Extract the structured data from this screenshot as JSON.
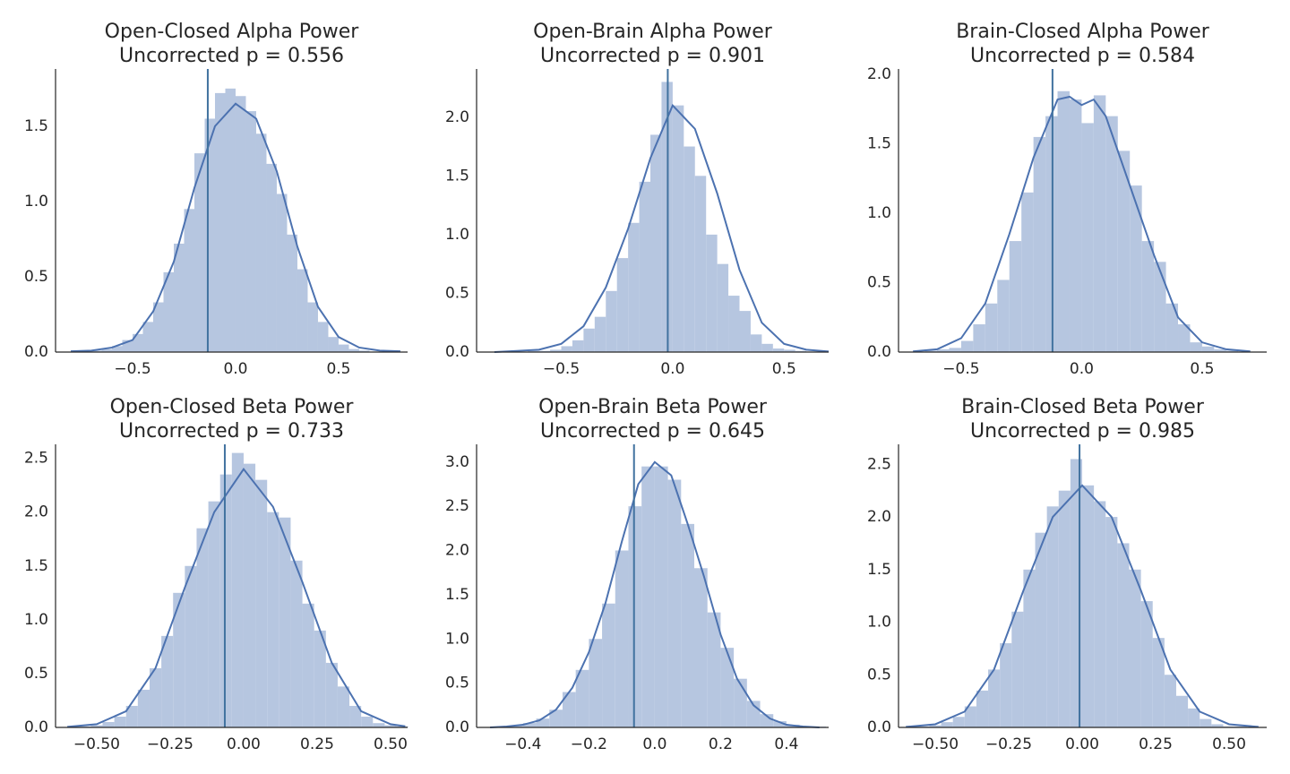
{
  "chart_data": [
    {
      "type": "histogram",
      "title": "Open-Closed Alpha Power",
      "subtitle": "Uncorrected p = 0.556",
      "bins": [
        -0.75,
        -0.7,
        -0.65,
        -0.6,
        -0.55,
        -0.5,
        -0.45,
        -0.4,
        -0.35,
        -0.3,
        -0.25,
        -0.2,
        -0.15,
        -0.1,
        -0.05,
        0,
        0.05,
        0.1,
        0.15,
        0.2,
        0.25,
        0.3,
        0.35,
        0.4,
        0.45,
        0.5,
        0.55,
        0.6,
        0.65
      ],
      "counts": [
        0.01,
        0.01,
        0.02,
        0.04,
        0.08,
        0.12,
        0.2,
        0.33,
        0.53,
        0.72,
        0.95,
        1.32,
        1.55,
        1.72,
        1.75,
        1.7,
        1.6,
        1.45,
        1.25,
        1.05,
        0.78,
        0.55,
        0.33,
        0.2,
        0.1,
        0.05,
        0.02,
        0.01
      ],
      "color": "#b6c6e0",
      "kde": {
        "x": [
          -0.8,
          -0.7,
          -0.6,
          -0.5,
          -0.4,
          -0.3,
          -0.2,
          -0.1,
          0,
          0.1,
          0.2,
          0.3,
          0.4,
          0.5,
          0.6,
          0.7,
          0.8
        ],
        "values": [
          0.005,
          0.01,
          0.03,
          0.08,
          0.27,
          0.6,
          1.09,
          1.5,
          1.65,
          1.55,
          1.2,
          0.7,
          0.3,
          0.1,
          0.03,
          0.01,
          0.005
        ],
        "color": "#4c72b0"
      },
      "vline": -0.135,
      "vline_color": "#41729f",
      "xlim": [
        -0.874,
        0.835
      ],
      "ylim": [
        0,
        1.88
      ],
      "xticks": [
        {
          "value": -0.5,
          "label": "−0.5"
        },
        {
          "value": 0,
          "label": "0.0"
        },
        0.5
      ],
      "yticks": [
        {
          "value": 0,
          "label": "0.0"
        },
        0.5,
        {
          "value": 1,
          "label": "1.0"
        },
        1.5
      ]
    },
    {
      "type": "histogram",
      "title": "Open-Brain Alpha Power",
      "subtitle": "Uncorrected p = 0.901",
      "bins": [
        -0.75,
        -0.7,
        -0.65,
        -0.6,
        -0.55,
        -0.5,
        -0.45,
        -0.4,
        -0.35,
        -0.3,
        -0.25,
        -0.2,
        -0.15,
        -0.1,
        -0.05,
        0,
        0.05,
        0.1,
        0.15,
        0.2,
        0.25,
        0.3,
        0.35,
        0.4,
        0.45,
        0.5,
        0.55,
        0.6,
        0.65
      ],
      "counts": [
        0.01,
        0,
        0.01,
        0.01,
        0.02,
        0.05,
        0.1,
        0.2,
        0.3,
        0.52,
        0.8,
        1.1,
        1.45,
        1.85,
        2.3,
        2.1,
        1.75,
        1.5,
        1.0,
        0.75,
        0.48,
        0.35,
        0.15,
        0.07,
        0.03,
        0.02,
        0.01,
        0
      ],
      "color": "#b6c6e0",
      "kde": {
        "x": [
          -0.8,
          -0.7,
          -0.6,
          -0.5,
          -0.4,
          -0.3,
          -0.2,
          -0.1,
          0,
          0.1,
          0.2,
          0.3,
          0.4,
          0.5,
          0.6,
          0.7
        ],
        "values": [
          0,
          0.01,
          0.02,
          0.07,
          0.22,
          0.55,
          1.05,
          1.65,
          2.1,
          1.9,
          1.35,
          0.7,
          0.25,
          0.07,
          0.02,
          0.005
        ],
        "color": "#4c72b0"
      },
      "vline": -0.022,
      "vline_color": "#41729f",
      "xlim": [
        -0.88,
        0.7
      ],
      "ylim": [
        0,
        2.41
      ],
      "xticks": [
        {
          "value": -0.5,
          "label": "−0.5"
        },
        {
          "value": 0,
          "label": "0.0"
        },
        0.5
      ],
      "yticks": [
        {
          "value": 0,
          "label": "0.0"
        },
        0.5,
        {
          "value": 1,
          "label": "1.0"
        },
        1.5,
        {
          "value": 2,
          "label": "2.0"
        }
      ]
    },
    {
      "type": "histogram",
      "title": "Brain-Closed Alpha Power",
      "subtitle": "Uncorrected p = 0.584",
      "bins": [
        -0.65,
        -0.6,
        -0.55,
        -0.5,
        -0.45,
        -0.4,
        -0.35,
        -0.3,
        -0.25,
        -0.2,
        -0.15,
        -0.1,
        -0.05,
        0,
        0.05,
        0.1,
        0.15,
        0.2,
        0.25,
        0.3,
        0.35,
        0.4,
        0.45,
        0.5,
        0.55,
        0.6,
        0.65
      ],
      "counts": [
        0.01,
        0.02,
        0.03,
        0.08,
        0.2,
        0.35,
        0.52,
        0.8,
        1.15,
        1.55,
        1.7,
        1.88,
        1.82,
        1.65,
        1.85,
        1.7,
        1.45,
        1.2,
        0.8,
        0.65,
        0.35,
        0.2,
        0.07,
        0.04,
        0.02,
        0.01
      ],
      "color": "#b6c6e0",
      "kde": {
        "x": [
          -0.7,
          -0.6,
          -0.5,
          -0.4,
          -0.3,
          -0.2,
          -0.1,
          -0.05,
          0,
          0.05,
          0.1,
          0.2,
          0.3,
          0.4,
          0.5,
          0.6,
          0.7
        ],
        "values": [
          0.005,
          0.02,
          0.1,
          0.35,
          0.85,
          1.4,
          1.82,
          1.84,
          1.78,
          1.82,
          1.7,
          1.2,
          0.7,
          0.25,
          0.07,
          0.02,
          0.005
        ],
        "color": "#4c72b0"
      },
      "vline": -0.121,
      "vline_color": "#41729f",
      "xlim": [
        -0.76,
        0.768
      ],
      "ylim": [
        0,
        2.04
      ],
      "xticks": [
        {
          "value": -0.5,
          "label": "−0.5"
        },
        {
          "value": 0,
          "label": "0.0"
        },
        0.5
      ],
      "yticks": [
        {
          "value": 0,
          "label": "0.0"
        },
        0.5,
        {
          "value": 1,
          "label": "1.0"
        },
        1.5,
        {
          "value": 2,
          "label": "2.0"
        }
      ]
    },
    {
      "type": "histogram",
      "title": "Open-Closed Beta Power",
      "subtitle": "Uncorrected p = 0.733",
      "bins": [
        -0.6,
        -0.56,
        -0.52,
        -0.48,
        -0.44,
        -0.4,
        -0.36,
        -0.32,
        -0.28,
        -0.24,
        -0.2,
        -0.16,
        -0.12,
        -0.08,
        -0.04,
        0,
        0.04,
        0.08,
        0.12,
        0.16,
        0.2,
        0.24,
        0.28,
        0.32,
        0.36,
        0.4,
        0.44,
        0.48,
        0.52,
        0.56
      ],
      "counts": [
        0.01,
        0.01,
        0.02,
        0.05,
        0.1,
        0.2,
        0.35,
        0.55,
        0.85,
        1.25,
        1.5,
        1.85,
        2.1,
        2.35,
        2.55,
        2.45,
        2.3,
        2.0,
        1.95,
        1.55,
        1.15,
        0.9,
        0.6,
        0.38,
        0.2,
        0.1,
        0.04,
        0.02,
        0.01
      ],
      "color": "#b6c6e0",
      "kde": {
        "x": [
          -0.6,
          -0.5,
          -0.4,
          -0.3,
          -0.2,
          -0.1,
          0,
          0.1,
          0.2,
          0.3,
          0.4,
          0.5,
          0.55
        ],
        "values": [
          0.005,
          0.03,
          0.15,
          0.55,
          1.3,
          2.0,
          2.4,
          2.05,
          1.35,
          0.6,
          0.15,
          0.03,
          0.01
        ],
        "color": "#4c72b0"
      },
      "vline": -0.064,
      "vline_color": "#41729f",
      "xlim": [
        -0.64,
        0.558
      ],
      "ylim": [
        0,
        2.63
      ],
      "xticks": [
        {
          "value": -0.5,
          "label": "−0.50"
        },
        {
          "value": -0.25,
          "label": "−0.25"
        },
        {
          "value": 0,
          "label": "0.00"
        },
        0.25,
        {
          "value": 0.5,
          "label": "0.50"
        }
      ],
      "yticks": [
        {
          "value": 0,
          "label": "0.0"
        },
        0.5,
        {
          "value": 1,
          "label": "1.0"
        },
        1.5,
        {
          "value": 2,
          "label": "2.0"
        },
        2.5
      ]
    },
    {
      "type": "histogram",
      "title": "Open-Brain Beta Power",
      "subtitle": "Uncorrected p = 0.645",
      "bins": [
        -0.48,
        -0.44,
        -0.4,
        -0.36,
        -0.32,
        -0.28,
        -0.24,
        -0.2,
        -0.16,
        -0.12,
        -0.08,
        -0.04,
        0,
        0.04,
        0.08,
        0.12,
        0.16,
        0.2,
        0.24,
        0.28,
        0.32,
        0.36,
        0.4,
        0.44,
        0.48,
        0.52
      ],
      "counts": [
        0.01,
        0.02,
        0.05,
        0.1,
        0.2,
        0.4,
        0.65,
        1.0,
        1.4,
        2.0,
        2.5,
        2.95,
        2.95,
        2.8,
        2.3,
        1.8,
        1.3,
        0.9,
        0.55,
        0.3,
        0.15,
        0.07,
        0.03,
        0.01,
        0.01
      ],
      "color": "#b6c6e0",
      "kde": {
        "x": [
          -0.5,
          -0.45,
          -0.4,
          -0.35,
          -0.3,
          -0.25,
          -0.2,
          -0.15,
          -0.1,
          -0.05,
          0,
          0.05,
          0.1,
          0.15,
          0.2,
          0.25,
          0.3,
          0.35,
          0.4,
          0.45,
          0.5
        ],
        "values": [
          0,
          0.01,
          0.03,
          0.08,
          0.2,
          0.45,
          0.85,
          1.4,
          2.1,
          2.75,
          3.0,
          2.85,
          2.3,
          1.7,
          1.05,
          0.55,
          0.25,
          0.1,
          0.03,
          0.01,
          0
        ],
        "color": "#4c72b0"
      },
      "vline": -0.063,
      "vline_color": "#41729f",
      "xlim": [
        -0.541,
        0.528
      ],
      "ylim": [
        0,
        3.2
      ],
      "xticks": [
        {
          "value": -0.4,
          "label": "−0.4"
        },
        {
          "value": -0.2,
          "label": "−0.2"
        },
        {
          "value": 0,
          "label": "0.0"
        },
        0.2,
        0.4
      ],
      "yticks": [
        {
          "value": 0,
          "label": "0.0"
        },
        0.5,
        {
          "value": 1,
          "label": "1.0"
        },
        1.5,
        {
          "value": 2,
          "label": "2.0"
        },
        2.5,
        {
          "value": 3,
          "label": "3.0"
        }
      ]
    },
    {
      "type": "histogram",
      "title": "Brain-Closed Beta Power",
      "subtitle": "Uncorrected p = 0.985",
      "bins": [
        -0.6,
        -0.56,
        -0.52,
        -0.48,
        -0.44,
        -0.4,
        -0.36,
        -0.32,
        -0.28,
        -0.24,
        -0.2,
        -0.16,
        -0.12,
        -0.08,
        -0.04,
        0,
        0.04,
        0.08,
        0.12,
        0.16,
        0.2,
        0.24,
        0.28,
        0.32,
        0.36,
        0.4,
        0.44,
        0.48,
        0.52,
        0.56
      ],
      "counts": [
        0.01,
        0.01,
        0.02,
        0.05,
        0.1,
        0.2,
        0.35,
        0.55,
        0.8,
        1.1,
        1.5,
        1.85,
        2.1,
        2.25,
        2.55,
        2.3,
        2.15,
        2.0,
        1.75,
        1.5,
        1.2,
        0.85,
        0.5,
        0.3,
        0.18,
        0.08,
        0.03,
        0.01,
        0.01
      ],
      "color": "#b6c6e0",
      "kde": {
        "x": [
          -0.6,
          -0.5,
          -0.4,
          -0.3,
          -0.2,
          -0.1,
          0,
          0.1,
          0.2,
          0.3,
          0.4,
          0.5,
          0.6
        ],
        "values": [
          0.005,
          0.03,
          0.15,
          0.55,
          1.3,
          2.0,
          2.3,
          2.0,
          1.3,
          0.55,
          0.15,
          0.03,
          0.005
        ],
        "color": "#4c72b0"
      },
      "vline": -0.009,
      "vline_color": "#41729f",
      "xlim": [
        -0.625,
        0.628
      ],
      "ylim": [
        0,
        2.69
      ],
      "xticks": [
        {
          "value": -0.5,
          "label": "−0.50"
        },
        {
          "value": -0.25,
          "label": "−0.25"
        },
        {
          "value": 0,
          "label": "0.00"
        },
        0.25,
        {
          "value": 0.5,
          "label": "0.50"
        }
      ],
      "yticks": [
        {
          "value": 0,
          "label": "0.0"
        },
        0.5,
        {
          "value": 1,
          "label": "1.0"
        },
        1.5,
        {
          "value": 2,
          "label": "2.0"
        },
        2.5
      ]
    }
  ]
}
